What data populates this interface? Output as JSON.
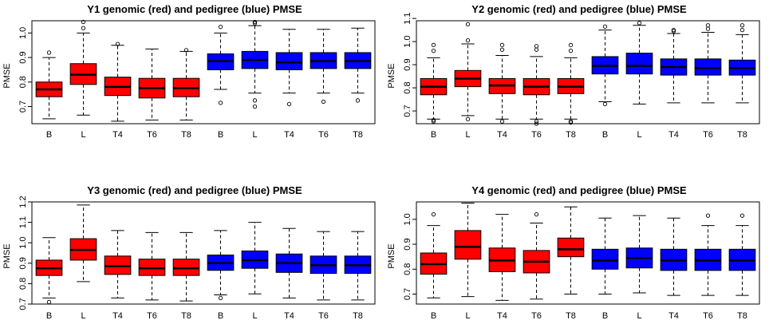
{
  "chart_data": [
    {
      "type": "boxplot",
      "title": "Y1 genomic (red) and pedigree (blue) PMSE",
      "ylabel": "PMSE",
      "ylim": [
        0.63,
        1.05
      ],
      "yticks": [
        0.7,
        0.8,
        0.9,
        1.0
      ],
      "ytick_labels": [
        "0.7",
        "0.8",
        "0.9",
        "1.0"
      ],
      "categories": [
        "B",
        "L",
        "T4",
        "T6",
        "T8",
        "B",
        "L",
        "T4",
        "T6",
        "T8"
      ],
      "colors": [
        "#ff0000",
        "#ff0000",
        "#ff0000",
        "#ff0000",
        "#ff0000",
        "#0000ff",
        "#0000ff",
        "#0000ff",
        "#0000ff",
        "#0000ff"
      ],
      "boxes": [
        {
          "wlo": 0.65,
          "q1": 0.74,
          "med": 0.77,
          "q3": 0.8,
          "whi": 0.9,
          "out": [
            0.92
          ]
        },
        {
          "wlo": 0.665,
          "q1": 0.79,
          "med": 0.83,
          "q3": 0.875,
          "whi": 1.0,
          "out": [
            1.02,
            1.045
          ]
        },
        {
          "wlo": 0.64,
          "q1": 0.745,
          "med": 0.78,
          "q3": 0.82,
          "whi": 0.95,
          "out": [
            0.955
          ]
        },
        {
          "wlo": 0.645,
          "q1": 0.735,
          "med": 0.775,
          "q3": 0.815,
          "whi": 0.935,
          "out": []
        },
        {
          "wlo": 0.645,
          "q1": 0.74,
          "med": 0.775,
          "q3": 0.815,
          "whi": 0.925,
          "out": [
            0.93
          ]
        },
        {
          "wlo": 0.77,
          "q1": 0.85,
          "med": 0.885,
          "q3": 0.915,
          "whi": 1.0,
          "out": [
            1.025,
            0.715
          ]
        },
        {
          "wlo": 0.755,
          "q1": 0.855,
          "med": 0.89,
          "q3": 0.925,
          "whi": 1.03,
          "out": [
            1.04,
            1.045,
            0.725,
            0.7
          ]
        },
        {
          "wlo": 0.755,
          "q1": 0.85,
          "med": 0.88,
          "q3": 0.92,
          "whi": 1.015,
          "out": [
            0.71
          ]
        },
        {
          "wlo": 0.755,
          "q1": 0.855,
          "med": 0.885,
          "q3": 0.92,
          "whi": 1.015,
          "out": [
            0.72
          ]
        },
        {
          "wlo": 0.755,
          "q1": 0.855,
          "med": 0.885,
          "q3": 0.92,
          "whi": 1.02,
          "out": [
            0.725
          ]
        }
      ]
    },
    {
      "type": "boxplot",
      "title": "Y2 genomic (red) and pedigree (blue) PMSE",
      "ylabel": "PMSE",
      "ylim": [
        0.645,
        1.09
      ],
      "yticks": [
        0.7,
        0.8,
        0.9,
        1.0,
        1.1
      ],
      "ytick_labels": [
        "0.7",
        "0.8",
        "0.9",
        "1.0",
        "1.1"
      ],
      "categories": [
        "B",
        "L",
        "T4",
        "T6",
        "T8",
        "B",
        "L",
        "T4",
        "T6",
        "T8"
      ],
      "colors": [
        "#ff0000",
        "#ff0000",
        "#ff0000",
        "#ff0000",
        "#ff0000",
        "#0000ff",
        "#0000ff",
        "#0000ff",
        "#0000ff",
        "#0000ff"
      ],
      "boxes": [
        {
          "wlo": 0.665,
          "q1": 0.77,
          "med": 0.805,
          "q3": 0.84,
          "whi": 0.93,
          "out": [
            0.96,
            0.985,
            0.66,
            0.655
          ]
        },
        {
          "wlo": 0.68,
          "q1": 0.805,
          "med": 0.84,
          "q3": 0.875,
          "whi": 0.99,
          "out": [
            1.005,
            1.075,
            0.665
          ]
        },
        {
          "wlo": 0.665,
          "q1": 0.775,
          "med": 0.81,
          "q3": 0.84,
          "whi": 0.94,
          "out": [
            0.965,
            0.985,
            0.655
          ]
        },
        {
          "wlo": 0.665,
          "q1": 0.77,
          "med": 0.805,
          "q3": 0.84,
          "whi": 0.935,
          "out": [
            0.965,
            0.98,
            0.655,
            0.645
          ]
        },
        {
          "wlo": 0.665,
          "q1": 0.775,
          "med": 0.805,
          "q3": 0.84,
          "whi": 0.93,
          "out": [
            0.96,
            0.985,
            0.655,
            0.65
          ]
        },
        {
          "wlo": 0.74,
          "q1": 0.86,
          "med": 0.895,
          "q3": 0.935,
          "whi": 1.05,
          "out": [
            1.065,
            0.73
          ]
        },
        {
          "wlo": 0.73,
          "q1": 0.86,
          "med": 0.895,
          "q3": 0.95,
          "whi": 1.07,
          "out": [
            1.08
          ]
        },
        {
          "wlo": 0.735,
          "q1": 0.855,
          "med": 0.89,
          "q3": 0.925,
          "whi": 1.035,
          "out": [
            1.045,
            1.05
          ]
        },
        {
          "wlo": 0.735,
          "q1": 0.855,
          "med": 0.885,
          "q3": 0.925,
          "whi": 1.04,
          "out": [
            1.055,
            1.07
          ]
        },
        {
          "wlo": 0.735,
          "q1": 0.855,
          "med": 0.885,
          "q3": 0.92,
          "whi": 1.03,
          "out": [
            1.05,
            1.07
          ]
        }
      ]
    },
    {
      "type": "boxplot",
      "title": "Y3 genomic (red) and pedigree (blue) PMSE",
      "ylabel": "PMSE",
      "ylim": [
        0.7,
        1.2
      ],
      "yticks": [
        0.7,
        0.8,
        0.9,
        1.0,
        1.1,
        1.2
      ],
      "ytick_labels": [
        "0.7",
        "0.8",
        "0.9",
        "1.0",
        "1.1",
        "1.2"
      ],
      "categories": [
        "B",
        "L",
        "T4",
        "T6",
        "T8",
        "B",
        "L",
        "T4",
        "T6",
        "T8"
      ],
      "colors": [
        "#ff0000",
        "#ff0000",
        "#ff0000",
        "#ff0000",
        "#ff0000",
        "#0000ff",
        "#0000ff",
        "#0000ff",
        "#0000ff",
        "#0000ff"
      ],
      "boxes": [
        {
          "wlo": 0.73,
          "q1": 0.84,
          "med": 0.875,
          "q3": 0.915,
          "whi": 1.025,
          "out": [
            0.71
          ]
        },
        {
          "wlo": 0.81,
          "q1": 0.915,
          "med": 0.965,
          "q3": 1.02,
          "whi": 1.185,
          "out": []
        },
        {
          "wlo": 0.73,
          "q1": 0.845,
          "med": 0.885,
          "q3": 0.935,
          "whi": 1.06,
          "out": []
        },
        {
          "wlo": 0.72,
          "q1": 0.84,
          "med": 0.875,
          "q3": 0.92,
          "whi": 1.05,
          "out": []
        },
        {
          "wlo": 0.715,
          "q1": 0.84,
          "med": 0.875,
          "q3": 0.92,
          "whi": 1.05,
          "out": []
        },
        {
          "wlo": 0.745,
          "q1": 0.865,
          "med": 0.9,
          "q3": 0.94,
          "whi": 1.06,
          "out": [
            0.73
          ]
        },
        {
          "wlo": 0.75,
          "q1": 0.875,
          "med": 0.915,
          "q3": 0.96,
          "whi": 1.1,
          "out": []
        },
        {
          "wlo": 0.73,
          "q1": 0.855,
          "med": 0.9,
          "q3": 0.945,
          "whi": 1.07,
          "out": []
        },
        {
          "wlo": 0.72,
          "q1": 0.85,
          "med": 0.89,
          "q3": 0.935,
          "whi": 1.055,
          "out": []
        },
        {
          "wlo": 0.72,
          "q1": 0.85,
          "med": 0.89,
          "q3": 0.935,
          "whi": 1.055,
          "out": []
        }
      ]
    },
    {
      "type": "boxplot",
      "title": "Y4 genomic (red) and pedigree (blue) PMSE",
      "ylabel": "PMSE",
      "ylim": [
        0.66,
        1.07
      ],
      "yticks": [
        0.7,
        0.8,
        0.9,
        1.0
      ],
      "ytick_labels": [
        "0.7",
        "0.8",
        "0.9",
        "1.0"
      ],
      "categories": [
        "B",
        "L",
        "T4",
        "T6",
        "T8",
        "B",
        "L",
        "T4",
        "T6",
        "T8"
      ],
      "colors": [
        "#ff0000",
        "#ff0000",
        "#ff0000",
        "#ff0000",
        "#ff0000",
        "#0000ff",
        "#0000ff",
        "#0000ff",
        "#0000ff",
        "#0000ff"
      ],
      "boxes": [
        {
          "wlo": 0.685,
          "q1": 0.78,
          "med": 0.82,
          "q3": 0.865,
          "whi": 0.975,
          "out": [
            1.02
          ]
        },
        {
          "wlo": 0.69,
          "q1": 0.84,
          "med": 0.89,
          "q3": 0.955,
          "whi": 1.065,
          "out": []
        },
        {
          "wlo": 0.675,
          "q1": 0.79,
          "med": 0.835,
          "q3": 0.885,
          "whi": 1.02,
          "out": []
        },
        {
          "wlo": 0.68,
          "q1": 0.785,
          "med": 0.83,
          "q3": 0.875,
          "whi": 0.985,
          "out": [
            1.02
          ]
        },
        {
          "wlo": 0.7,
          "q1": 0.85,
          "med": 0.88,
          "q3": 0.925,
          "whi": 1.05,
          "out": []
        },
        {
          "wlo": 0.7,
          "q1": 0.8,
          "med": 0.835,
          "q3": 0.88,
          "whi": 1.005,
          "out": []
        },
        {
          "wlo": 0.705,
          "q1": 0.805,
          "med": 0.845,
          "q3": 0.885,
          "whi": 1.015,
          "out": []
        },
        {
          "wlo": 0.695,
          "q1": 0.795,
          "med": 0.835,
          "q3": 0.88,
          "whi": 1.005,
          "out": []
        },
        {
          "wlo": 0.695,
          "q1": 0.795,
          "med": 0.835,
          "q3": 0.88,
          "whi": 0.975,
          "out": [
            1.015
          ]
        },
        {
          "wlo": 0.695,
          "q1": 0.795,
          "med": 0.835,
          "q3": 0.88,
          "whi": 0.975,
          "out": [
            1.015
          ]
        }
      ]
    }
  ]
}
